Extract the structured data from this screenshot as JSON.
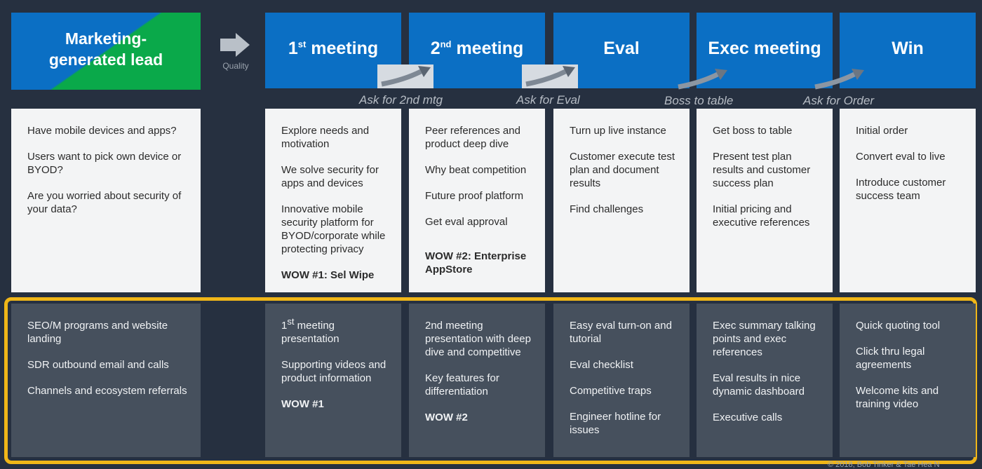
{
  "columns": [
    {
      "key": "lead",
      "title": "Marketing-\ngenerated lead",
      "title_sup": "",
      "title_rest": ""
    },
    {
      "key": "m1",
      "title": "1",
      "title_sup": "st",
      "title_rest": " meeting"
    },
    {
      "key": "m2",
      "title": "2",
      "title_sup": "nd",
      "title_rest": " meeting"
    },
    {
      "key": "eval",
      "title": "Eval",
      "title_sup": "",
      "title_rest": ""
    },
    {
      "key": "exec",
      "title": "Exec meeting",
      "title_sup": "",
      "title_rest": ""
    },
    {
      "key": "win",
      "title": "Win",
      "title_sup": "",
      "title_rest": ""
    }
  ],
  "arrow_label": "Quality",
  "asks": [
    "Ask for 2nd mtg",
    "Ask for Eval",
    "Boss to table",
    "Ask for Order"
  ],
  "middle": [
    {
      "items": [
        "Have mobile devices and apps?",
        "Users want to pick own device or BYOD?",
        "Are you worried about security of your data?"
      ],
      "wow": ""
    },
    {
      "items": [
        "Explore needs and motivation",
        "We solve security for apps and devices",
        "Innovative mobile security platform for BYOD/corporate while protecting privacy"
      ],
      "wow": "WOW #1:  Sel Wipe"
    },
    {
      "items": [
        "Peer references and product deep dive",
        "Why beat competition",
        "Future proof platform",
        "Get eval approval"
      ],
      "wow": "WOW #2:  Enterprise AppStore"
    },
    {
      "items": [
        "Turn up live instance",
        "Customer execute test plan and document results",
        "Find challenges"
      ],
      "wow": ""
    },
    {
      "items": [
        "Get boss to table",
        "Present test plan results and customer success plan",
        "Initial pricing and executive references"
      ],
      "wow": ""
    },
    {
      "items": [
        "Initial order",
        "Convert eval to live",
        "Introduce customer success team"
      ],
      "wow": ""
    }
  ],
  "bottom": [
    {
      "items": [
        "SEO/M programs and website landing",
        "SDR outbound email and calls",
        "Channels and ecosystem referrals"
      ],
      "wow": ""
    },
    {
      "first": {
        "pre": "1",
        "sup": "st",
        "post": " meeting presentation"
      },
      "items": [
        "Supporting videos and product information"
      ],
      "wow": "WOW #1"
    },
    {
      "items": [
        "2nd meeting presentation with deep dive and competitive",
        "Key features for differentiation"
      ],
      "wow": "WOW #2"
    },
    {
      "items": [
        "Easy eval turn-on and tutorial",
        "Eval checklist",
        "Competitive traps",
        "Engineer hotline for issues"
      ],
      "wow": ""
    },
    {
      "items": [
        "Exec summary talking points and exec references",
        "Eval results in nice dynamic dashboard",
        "Executive calls"
      ],
      "wow": ""
    },
    {
      "items": [
        "Quick quoting tool",
        "Click thru legal agreements",
        "Welcome kits and training video"
      ],
      "wow": ""
    }
  ],
  "copyright": "© 2018, Bob Tinker & Tae Hea N",
  "colors": {
    "header_blue": "#0b6fc4",
    "lead_green": "#0aa94a",
    "highlight_yellow": "#f0b618",
    "background": "#263040"
  }
}
